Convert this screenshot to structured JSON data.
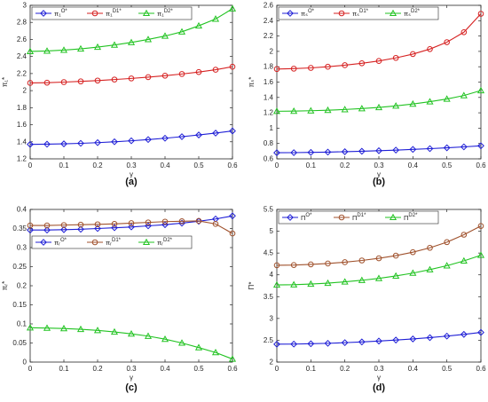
{
  "colors": {
    "blue": "#1f1fd6",
    "red": "#d62222",
    "green": "#22c322",
    "brown": "#a0522d"
  },
  "chart_data": [
    {
      "type": "line",
      "panel_label": "(a)",
      "xlabel": "γ",
      "ylabel": "π₁*",
      "xlim": [
        0,
        0.6
      ],
      "ylim": [
        1.2,
        3
      ],
      "xticks": [
        "0",
        "0.1",
        "0.2",
        "0.3",
        "0.4",
        "0.5",
        "0.6"
      ],
      "yticks": [
        "1.2",
        "1.4",
        "1.6",
        "1.8",
        "2",
        "2.2",
        "2.4",
        "2.6",
        "2.8",
        "3"
      ],
      "legend_position": "top-left",
      "x": [
        0,
        0.05,
        0.1,
        0.15,
        0.2,
        0.25,
        0.3,
        0.35,
        0.4,
        0.45,
        0.5,
        0.55,
        0.6
      ],
      "series": [
        {
          "name": "π₁^{O*}",
          "color": "blue",
          "marker": "diamond",
          "values": [
            1.37,
            1.372,
            1.376,
            1.382,
            1.39,
            1.4,
            1.412,
            1.426,
            1.442,
            1.46,
            1.48,
            1.502,
            1.527
          ]
        },
        {
          "name": "π₁^{D1*}",
          "color": "red",
          "marker": "circle",
          "values": [
            2.09,
            2.093,
            2.1,
            2.108,
            2.118,
            2.13,
            2.143,
            2.158,
            2.175,
            2.195,
            2.218,
            2.245,
            2.28
          ]
        },
        {
          "name": "π₁^{D2*}",
          "color": "green",
          "marker": "triangle",
          "values": [
            2.46,
            2.465,
            2.475,
            2.49,
            2.51,
            2.535,
            2.565,
            2.6,
            2.64,
            2.69,
            2.76,
            2.84,
            2.96
          ]
        }
      ]
    },
    {
      "type": "line",
      "panel_label": "(b)",
      "xlabel": "γ",
      "ylabel": "πₛ*",
      "xlim": [
        0,
        0.6
      ],
      "ylim": [
        0.6,
        2.6
      ],
      "xticks": [
        "0",
        "0.1",
        "0.2",
        "0.3",
        "0.4",
        "0.5",
        "0.6"
      ],
      "yticks": [
        "0.6",
        "0.8",
        "1",
        "1.2",
        "1.4",
        "1.6",
        "1.8",
        "2",
        "2.2",
        "2.4",
        "2.6"
      ],
      "legend_position": "top-left",
      "x": [
        0,
        0.05,
        0.1,
        0.15,
        0.2,
        0.25,
        0.3,
        0.35,
        0.4,
        0.45,
        0.5,
        0.55,
        0.6
      ],
      "series": [
        {
          "name": "πₛ^{O*}",
          "color": "blue",
          "marker": "diamond",
          "values": [
            0.68,
            0.681,
            0.684,
            0.688,
            0.693,
            0.699,
            0.706,
            0.714,
            0.723,
            0.733,
            0.744,
            0.756,
            0.77
          ]
        },
        {
          "name": "πₛ^{D1*}",
          "color": "red",
          "marker": "circle",
          "values": [
            1.77,
            1.775,
            1.785,
            1.8,
            1.82,
            1.845,
            1.875,
            1.915,
            1.965,
            2.03,
            2.12,
            2.25,
            2.49
          ]
        },
        {
          "name": "πₛ^{D2*}",
          "color": "green",
          "marker": "triangle",
          "values": [
            1.22,
            1.222,
            1.227,
            1.234,
            1.243,
            1.255,
            1.27,
            1.29,
            1.315,
            1.345,
            1.38,
            1.425,
            1.49
          ]
        }
      ]
    },
    {
      "type": "line",
      "panel_label": "(c)",
      "xlabel": "γ",
      "ylabel": "πᵣ*",
      "xlim": [
        0,
        0.6
      ],
      "ylim": [
        0,
        0.4
      ],
      "xticks": [
        "0",
        "0.1",
        "0.2",
        "0.3",
        "0.4",
        "0.5",
        "0.6"
      ],
      "yticks": [
        "0",
        "0.05",
        "0.1",
        "0.15",
        "0.2",
        "0.25",
        "0.3",
        "0.35",
        "0.4"
      ],
      "legend_position": "middle-left",
      "x": [
        0,
        0.05,
        0.1,
        0.15,
        0.2,
        0.25,
        0.3,
        0.35,
        0.4,
        0.45,
        0.5,
        0.55,
        0.6
      ],
      "series": [
        {
          "name": "πᵣ^{O*}",
          "color": "blue",
          "marker": "diamond",
          "values": [
            0.346,
            0.346,
            0.347,
            0.348,
            0.35,
            0.352,
            0.354,
            0.357,
            0.36,
            0.364,
            0.369,
            0.375,
            0.383
          ]
        },
        {
          "name": "πᵣ^{D1*}",
          "color": "brown",
          "marker": "circle",
          "values": [
            0.358,
            0.358,
            0.359,
            0.36,
            0.361,
            0.362,
            0.364,
            0.366,
            0.368,
            0.369,
            0.37,
            0.362,
            0.337
          ]
        },
        {
          "name": "πᵣ^{D2*}",
          "color": "green",
          "marker": "triangle",
          "values": [
            0.09,
            0.089,
            0.088,
            0.086,
            0.083,
            0.079,
            0.074,
            0.068,
            0.06,
            0.05,
            0.038,
            0.025,
            0.008
          ]
        }
      ]
    },
    {
      "type": "line",
      "panel_label": "(d)",
      "xlabel": "γ",
      "ylabel": "Π*",
      "xlim": [
        0,
        0.6
      ],
      "ylim": [
        2,
        5.5
      ],
      "xticks": [
        "0",
        "0.1",
        "0.2",
        "0.3",
        "0.4",
        "0.5",
        "0.6"
      ],
      "yticks": [
        "2",
        "2.5",
        "3",
        "3.5",
        "4",
        "4.5",
        "5",
        "5.5"
      ],
      "legend_position": "top-left",
      "x": [
        0,
        0.05,
        0.1,
        0.15,
        0.2,
        0.25,
        0.3,
        0.35,
        0.4,
        0.45,
        0.5,
        0.55,
        0.6
      ],
      "series": [
        {
          "name": "Π^{O*}",
          "color": "blue",
          "marker": "diamond",
          "values": [
            2.41,
            2.412,
            2.42,
            2.43,
            2.445,
            2.462,
            2.482,
            2.505,
            2.53,
            2.56,
            2.595,
            2.635,
            2.68
          ]
        },
        {
          "name": "Π^{D1*}",
          "color": "brown",
          "marker": "circle",
          "values": [
            4.22,
            4.225,
            4.24,
            4.26,
            4.29,
            4.33,
            4.38,
            4.44,
            4.52,
            4.62,
            4.75,
            4.92,
            5.12
          ]
        },
        {
          "name": "Π^{D2*}",
          "color": "green",
          "marker": "triangle",
          "values": [
            3.77,
            3.775,
            3.79,
            3.81,
            3.84,
            3.875,
            3.92,
            3.975,
            4.04,
            4.12,
            4.21,
            4.32,
            4.45
          ]
        }
      ]
    }
  ]
}
